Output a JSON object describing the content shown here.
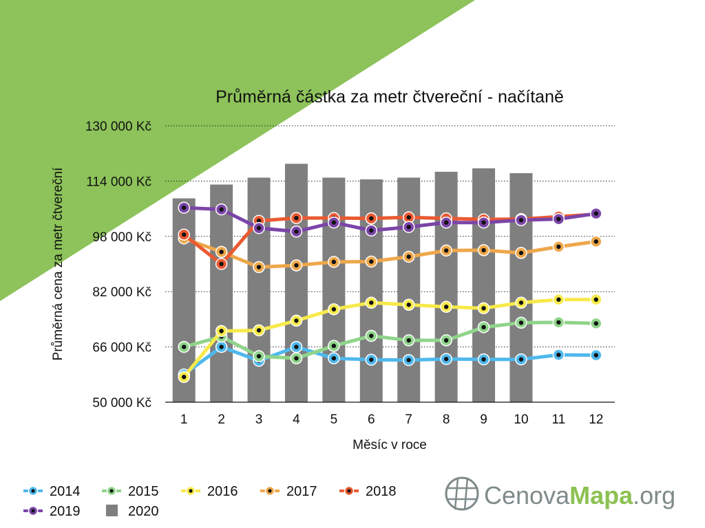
{
  "colors": {
    "green_triangle": "#8dc35a",
    "bar": "#7f7f7f",
    "2014": "#4fb8ec",
    "2015": "#8fd48a",
    "2016": "#f7ea4a",
    "2017": "#eea74a",
    "2018": "#ea5a32",
    "2019": "#7b45a8",
    "marker_dot": "#111111",
    "logo_green": "#8cc152",
    "logo_gray": "#7f8a8a"
  },
  "logo": {
    "part1": "Cenova",
    "part2": "Mapa",
    "part3": ".org",
    "icon": "globe-icon"
  },
  "chart_data": {
    "type": "line",
    "title": "Průměrná částka za metr čtvereční - načítaně",
    "xlabel": "Měsíc v roce",
    "ylabel": "Průměrná cena za metr čtvereční",
    "ylim": [
      50000,
      130000
    ],
    "yticks": [
      50000,
      66000,
      82000,
      98000,
      114000,
      130000
    ],
    "ytick_labels": [
      "50 000 Kč",
      "66 000 Kč",
      "82 000 Kč",
      "98 000 Kč",
      "114 000 Kč",
      "130 000 Kč"
    ],
    "categories": [
      "1",
      "2",
      "3",
      "4",
      "5",
      "6",
      "7",
      "8",
      "9",
      "10",
      "11",
      "12"
    ],
    "grid": "horizontal dotted",
    "legend_position": "bottom-left",
    "bar_series": {
      "name": "2020",
      "values": [
        109000,
        113000,
        115000,
        119000,
        115000,
        114500,
        115000,
        116700,
        117700,
        116300
      ]
    },
    "series": [
      {
        "name": "2014",
        "values": [
          58000,
          66000,
          62000,
          66000,
          62700,
          62300,
          62200,
          62500,
          62400,
          62400,
          63700,
          63600
        ]
      },
      {
        "name": "2015",
        "values": [
          66000,
          69000,
          63300,
          62700,
          66300,
          69200,
          67900,
          67900,
          71700,
          73000,
          73100,
          72800
        ]
      },
      {
        "name": "2016",
        "values": [
          57300,
          70600,
          70800,
          73600,
          76900,
          78800,
          78200,
          77600,
          77200,
          78800,
          79700,
          79700
        ]
      },
      {
        "name": "2017",
        "values": [
          97400,
          93500,
          89100,
          89600,
          90600,
          90700,
          92100,
          93900,
          94000,
          93200,
          95000,
          96500
        ]
      },
      {
        "name": "2018",
        "values": [
          98500,
          90000,
          102500,
          103300,
          103300,
          103200,
          103500,
          103200,
          102900,
          103000,
          103700,
          104400
        ]
      },
      {
        "name": "2019",
        "values": [
          106300,
          105800,
          100400,
          99400,
          102000,
          99700,
          100700,
          102000,
          102000,
          102700,
          103000,
          104600
        ]
      }
    ]
  }
}
